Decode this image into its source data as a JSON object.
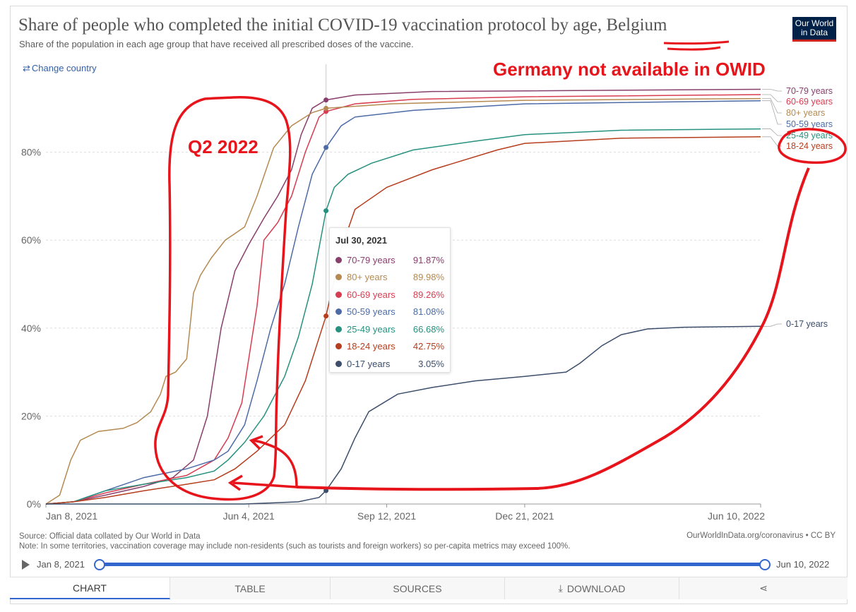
{
  "header": {
    "title": "Share of people who completed the initial COVID-19 vaccination protocol by age, Belgium",
    "subtitle": "Share of the population in each age group that have received all prescribed doses of the vaccine.",
    "logo_line1": "Our World",
    "logo_line2": "in Data",
    "change_country": "Change country"
  },
  "annotations": {
    "germany_note": "Germany not available in OWID",
    "q2_label": "Q2 2022",
    "color": "#e8141b"
  },
  "tooltip": {
    "date": "Jul 30, 2021",
    "rows": [
      {
        "name": "70-79 years",
        "value": "91.87%",
        "color": "#883f6c"
      },
      {
        "name": "80+ years",
        "value": "89.98%",
        "color": "#b58a52"
      },
      {
        "name": "60-69 years",
        "value": "89.26%",
        "color": "#d73c50"
      },
      {
        "name": "50-59 years",
        "value": "81.08%",
        "color": "#4c6ba6"
      },
      {
        "name": "25-49 years",
        "value": "66.68%",
        "color": "#26917f"
      },
      {
        "name": "18-24 years",
        "value": "42.75%",
        "color": "#b63d1d"
      },
      {
        "name": "0-17 years",
        "value": "3.05%",
        "color": "#3c4e6b"
      }
    ]
  },
  "footer": {
    "source": "Source: Official data collated by Our World in Data",
    "note": "Note: In some territories, vaccination coverage may include non-residents (such as tourists and foreign workers) so per-capita metrics may exceed 100%.",
    "credit": "OurWorldInData.org/coronavirus • CC BY"
  },
  "timeline": {
    "start": "Jan 8, 2021",
    "end": "Jun 10, 2022"
  },
  "tabs": [
    "CHART",
    "TABLE",
    "SOURCES",
    "DOWNLOAD",
    ""
  ],
  "chart_data": {
    "type": "line",
    "title": "Share of people who completed the initial COVID-19 vaccination protocol by age, Belgium",
    "x_ticks": [
      "Jan 8, 2021",
      "Jun 4, 2021",
      "Sep 12, 2021",
      "Dec 21, 2021",
      "Jun 10, 2022"
    ],
    "y_ticks": [
      "0%",
      "20%",
      "40%",
      "60%",
      "80%"
    ],
    "ylim": [
      0,
      100
    ],
    "x_type": "date",
    "xlim": [
      "2021-01-08",
      "2022-06-10"
    ],
    "hover_date": "2021-07-30",
    "grid": "horizontal",
    "series": [
      {
        "name": "70-79 years",
        "color": "#883f6c",
        "points": [
          [
            "2021-01-08",
            0
          ],
          [
            "2021-01-28",
            0.5
          ],
          [
            "2021-02-20",
            2
          ],
          [
            "2021-03-20",
            4
          ],
          [
            "2021-04-10",
            6
          ],
          [
            "2021-04-25",
            10
          ],
          [
            "2021-05-05",
            20
          ],
          [
            "2021-05-15",
            40
          ],
          [
            "2021-05-25",
            53
          ],
          [
            "2021-06-04",
            59
          ],
          [
            "2021-06-15",
            65
          ],
          [
            "2021-06-25",
            70
          ],
          [
            "2021-07-05",
            76
          ],
          [
            "2021-07-12",
            84
          ],
          [
            "2021-07-20",
            90
          ],
          [
            "2021-07-30",
            91.87
          ],
          [
            "2021-08-20",
            93
          ],
          [
            "2021-10-15",
            93.8
          ],
          [
            "2022-06-10",
            94.3
          ]
        ]
      },
      {
        "name": "60-69 years",
        "color": "#d73c50",
        "points": [
          [
            "2021-01-08",
            0
          ],
          [
            "2021-01-28",
            0.5
          ],
          [
            "2021-02-20",
            2.5
          ],
          [
            "2021-03-20",
            4.5
          ],
          [
            "2021-04-20",
            6.5
          ],
          [
            "2021-05-10",
            10
          ],
          [
            "2021-05-20",
            15
          ],
          [
            "2021-05-30",
            23
          ],
          [
            "2021-06-10",
            45
          ],
          [
            "2021-06-15",
            60
          ],
          [
            "2021-06-25",
            64
          ],
          [
            "2021-07-05",
            70
          ],
          [
            "2021-07-15",
            80
          ],
          [
            "2021-07-25",
            88
          ],
          [
            "2021-07-30",
            89.26
          ],
          [
            "2021-08-20",
            91
          ],
          [
            "2021-10-01",
            92
          ],
          [
            "2021-12-21",
            92.6
          ],
          [
            "2022-06-10",
            93.1
          ]
        ]
      },
      {
        "name": "80+ years",
        "color": "#b58a52",
        "points": [
          [
            "2021-01-08",
            0
          ],
          [
            "2021-01-18",
            2
          ],
          [
            "2021-01-26",
            10
          ],
          [
            "2021-02-02",
            14.5
          ],
          [
            "2021-02-15",
            16.5
          ],
          [
            "2021-03-05",
            17.2
          ],
          [
            "2021-03-15",
            18.5
          ],
          [
            "2021-03-25",
            21
          ],
          [
            "2021-04-01",
            25
          ],
          [
            "2021-04-05",
            29
          ],
          [
            "2021-04-12",
            30
          ],
          [
            "2021-04-20",
            33
          ],
          [
            "2021-04-25",
            48
          ],
          [
            "2021-04-30",
            52
          ],
          [
            "2021-05-08",
            56
          ],
          [
            "2021-05-18",
            60
          ],
          [
            "2021-06-01",
            63
          ],
          [
            "2021-06-10",
            70
          ],
          [
            "2021-06-22",
            81
          ],
          [
            "2021-07-05",
            86
          ],
          [
            "2021-07-20",
            89
          ],
          [
            "2021-07-30",
            89.98
          ],
          [
            "2021-09-15",
            91
          ],
          [
            "2021-12-21",
            91.8
          ],
          [
            "2022-06-10",
            92.2
          ]
        ]
      },
      {
        "name": "50-59 years",
        "color": "#4c6ba6",
        "points": [
          [
            "2021-01-08",
            0
          ],
          [
            "2021-01-28",
            0.5
          ],
          [
            "2021-02-20",
            3
          ],
          [
            "2021-03-20",
            6
          ],
          [
            "2021-04-20",
            8
          ],
          [
            "2021-05-10",
            10
          ],
          [
            "2021-05-20",
            12
          ],
          [
            "2021-06-01",
            18
          ],
          [
            "2021-06-10",
            28
          ],
          [
            "2021-06-20",
            40
          ],
          [
            "2021-06-30",
            50
          ],
          [
            "2021-07-10",
            63
          ],
          [
            "2021-07-20",
            75
          ],
          [
            "2021-07-30",
            81.08
          ],
          [
            "2021-08-10",
            86
          ],
          [
            "2021-08-20",
            88
          ],
          [
            "2021-10-01",
            89.5
          ],
          [
            "2021-12-21",
            91
          ],
          [
            "2022-06-10",
            91.7
          ]
        ]
      },
      {
        "name": "25-49 years",
        "color": "#26917f",
        "points": [
          [
            "2021-01-08",
            0
          ],
          [
            "2021-01-28",
            0.5
          ],
          [
            "2021-02-20",
            3
          ],
          [
            "2021-03-20",
            4.5
          ],
          [
            "2021-04-20",
            6
          ],
          [
            "2021-05-10",
            7.5
          ],
          [
            "2021-05-20",
            10
          ],
          [
            "2021-06-01",
            14
          ],
          [
            "2021-06-15",
            20
          ],
          [
            "2021-06-30",
            29
          ],
          [
            "2021-07-10",
            38
          ],
          [
            "2021-07-20",
            50
          ],
          [
            "2021-07-30",
            66.68
          ],
          [
            "2021-08-05",
            72
          ],
          [
            "2021-08-15",
            75
          ],
          [
            "2021-09-01",
            77.5
          ],
          [
            "2021-10-01",
            80.5
          ],
          [
            "2021-11-15",
            82.5
          ],
          [
            "2021-12-21",
            84
          ],
          [
            "2022-03-01",
            85
          ],
          [
            "2022-06-10",
            85.3
          ]
        ]
      },
      {
        "name": "18-24 years",
        "color": "#b63d1d",
        "points": [
          [
            "2021-01-08",
            0
          ],
          [
            "2021-01-28",
            0.5
          ],
          [
            "2021-02-20",
            1.5
          ],
          [
            "2021-03-20",
            3
          ],
          [
            "2021-04-20",
            4.5
          ],
          [
            "2021-05-10",
            5.5
          ],
          [
            "2021-05-25",
            8
          ],
          [
            "2021-06-10",
            12
          ],
          [
            "2021-06-30",
            18
          ],
          [
            "2021-07-15",
            28
          ],
          [
            "2021-07-30",
            42.75
          ],
          [
            "2021-08-10",
            58
          ],
          [
            "2021-08-20",
            67
          ],
          [
            "2021-09-12",
            72
          ],
          [
            "2021-10-15",
            76
          ],
          [
            "2021-12-01",
            80.5
          ],
          [
            "2021-12-21",
            82
          ],
          [
            "2022-03-01",
            83.2
          ],
          [
            "2022-06-10",
            83.5
          ]
        ]
      },
      {
        "name": "0-17 years",
        "color": "#3c4e6b",
        "points": [
          [
            "2021-01-08",
            0
          ],
          [
            "2021-06-01",
            0
          ],
          [
            "2021-07-10",
            0.5
          ],
          [
            "2021-07-25",
            1.5
          ],
          [
            "2021-07-30",
            3.05
          ],
          [
            "2021-08-10",
            8
          ],
          [
            "2021-08-20",
            15
          ],
          [
            "2021-08-30",
            21
          ],
          [
            "2021-09-20",
            25
          ],
          [
            "2021-10-15",
            26.5
          ],
          [
            "2021-11-15",
            28
          ],
          [
            "2021-12-21",
            29
          ],
          [
            "2022-01-20",
            30
          ],
          [
            "2022-01-30",
            32
          ],
          [
            "2022-02-15",
            36
          ],
          [
            "2022-03-01",
            38.5
          ],
          [
            "2022-03-20",
            39.8
          ],
          [
            "2022-04-15",
            40.2
          ],
          [
            "2022-06-10",
            40.4
          ]
        ]
      }
    ]
  }
}
